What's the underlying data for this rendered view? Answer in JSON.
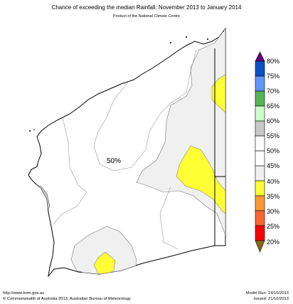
{
  "title": "Chance of exceeding the median Rainfall: November 2013 to January 2014",
  "subtitle": "Product of the National Climate Centre",
  "map_label": "50%",
  "legend": {
    "labels": [
      "80%",
      "75%",
      "70%",
      "65%",
      "60%",
      "55%",
      "50%",
      "45%",
      "40%",
      "35%",
      "30%",
      "25%",
      "20%"
    ],
    "colors": {
      "above_80": "#6a007a",
      "75_80": "#0a50c8",
      "70_75": "#5f97ff",
      "65_70": "#55b455",
      "60_65": "#ccffcc",
      "55_60": "#c8c8c8",
      "50_55": "#ffffff",
      "45_50": "#ffffff",
      "40_45": "#f0f0f0",
      "35_40": "#ffff33",
      "30_35": "#ff9933",
      "25_30": "#ff6633",
      "20_25": "#ff0000",
      "below_20": "#8b6914"
    }
  },
  "footer": {
    "website": "http://www.bom.gov.au",
    "copyright": "©  Commonwealth of Australia 2013, Australian Bureau of Meteorology",
    "model_run": "Model Run: 14/10/2013",
    "issued": "Issued: 21/10/2013"
  }
}
